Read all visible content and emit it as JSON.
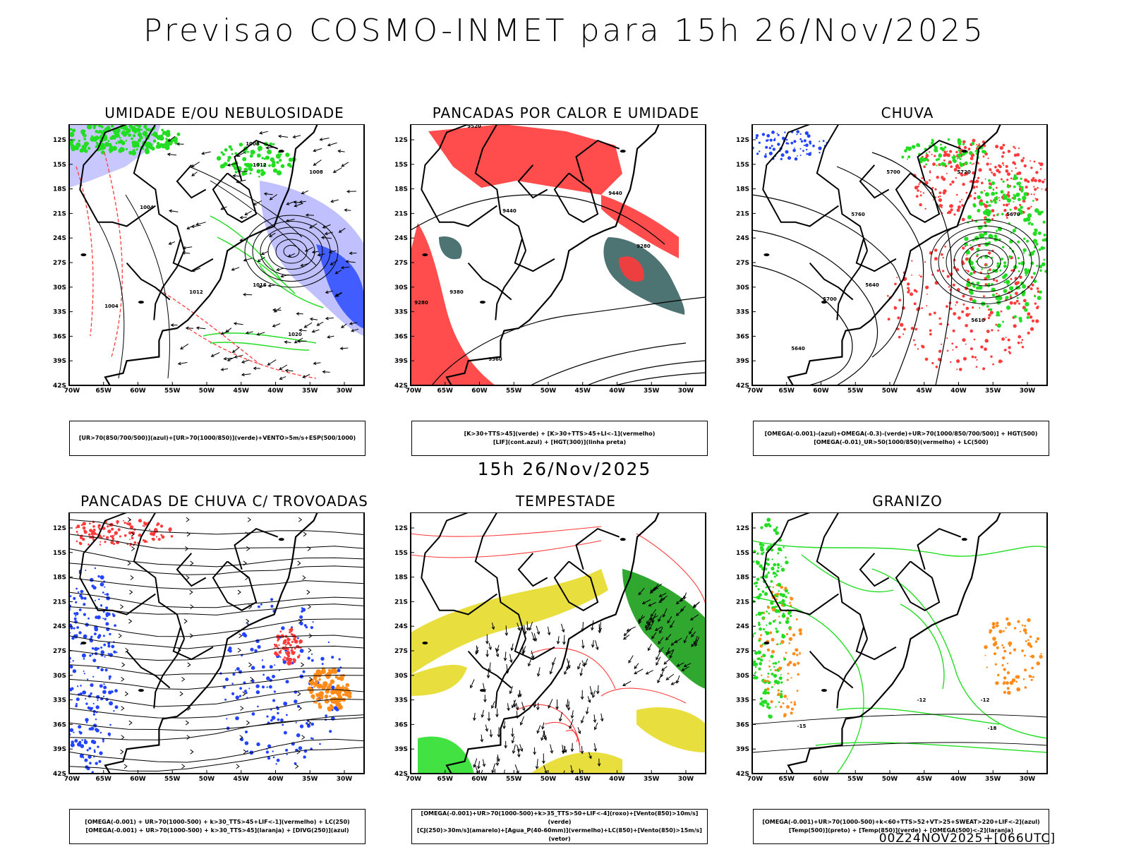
{
  "page": {
    "title": "Previsao COSMO-INMET  para 15h 26/Nov/2025",
    "subtitle": "15h 26/Nov/2025",
    "footer": "00Z24NOV2025+[066UTC]"
  },
  "axes": {
    "lat_labels": [
      "12S",
      "15S",
      "18S",
      "21S",
      "24S",
      "27S",
      "30S",
      "33S",
      "36S",
      "39S",
      "42S"
    ],
    "lon_labels": [
      "70W",
      "65W",
      "60W",
      "55W",
      "50W",
      "45W",
      "40W",
      "35W",
      "30W"
    ]
  },
  "colors": {
    "green": "#22dd22",
    "red": "#ff3a3a",
    "blue": "#2244ff",
    "lavender": "#b0b0ff",
    "orange": "#ff8c1a",
    "yellow": "#e6dc2a",
    "darkteal": "#2f5a5a",
    "darkgreen": "#1a9e1a"
  },
  "panels": [
    {
      "title": "UMIDADE E/OU NEBULOSIDADE",
      "legend": [
        "[UR>70(850/700/500)](azul)+[UR>70(1000/850)](verde)+VENTO>5m/s+ESP(500/1000)"
      ],
      "contour_labels": [
        "1008",
        "1004",
        "1012",
        "1016",
        "1020",
        "1004",
        "1008",
        "1012"
      ]
    },
    {
      "title": "PANCADAS POR CALOR E UMIDADE",
      "legend": [
        "[K>30+TTS>45](verde) + [K>30+TTS>45+LI<-1](vermelho)",
        "[LIF](cont.azul) + [HGT(300)](linha preta)"
      ],
      "contour_labels": [
        "9440",
        "9380",
        "9280",
        "9360",
        "9280",
        "9440",
        "9520"
      ]
    },
    {
      "title": "CHUVA",
      "legend": [
        "[OMEGA(-0.001)-(azul)+OMEGA(-0.3)-(verde)+UR>70(1000/850/700/500)] + HGT(500)",
        "[OMEGA(-0.01)_UR>50(1000/850)(vermelho) + LC(500)"
      ],
      "contour_labels": [
        "5760",
        "5700",
        "5640",
        "5610",
        "5670",
        "5720",
        "5640",
        "5700"
      ]
    },
    {
      "title": "PANCADAS DE CHUVA C/ TROVOADAS",
      "legend": [
        "[OMEGA(-0.001) + UR>70(1000-500) + k>30_TTS>45+LIF<-1](vermelho) + LC(250)",
        "[OMEGA(-0.001) + UR>70(1000-500) + k>30_TTS>45](laranja) + [DIVG(250)](azul)"
      ],
      "contour_labels": []
    },
    {
      "title": "TEMPESTADE",
      "legend": [
        "[OMEGA(-0.001)+UR>70(1000-500)+k>35_TTS>50+LIF<-4](roxo)+[Vento(850)>10m/s](verde)",
        "[CJ(250)>30m/s](amarelo)+[Agua_P(40-60mm)](vermelho)+LC(850)+[Vento(850)>15m/s](vetor)"
      ],
      "contour_labels": []
    },
    {
      "title": "GRANIZO",
      "legend": [
        "[OMEGA(-0.001)+UR>70(1000-500)+k<60+TTS>52+VT>25+SWEAT>220+LIF<-2](azul)",
        "[Temp(500)](preto) + [Temp(850)](verde) + [OMEGA(500)<-2](laranja)"
      ],
      "contour_labels": [
        "-12",
        "-12",
        "-15",
        "-18"
      ]
    }
  ]
}
